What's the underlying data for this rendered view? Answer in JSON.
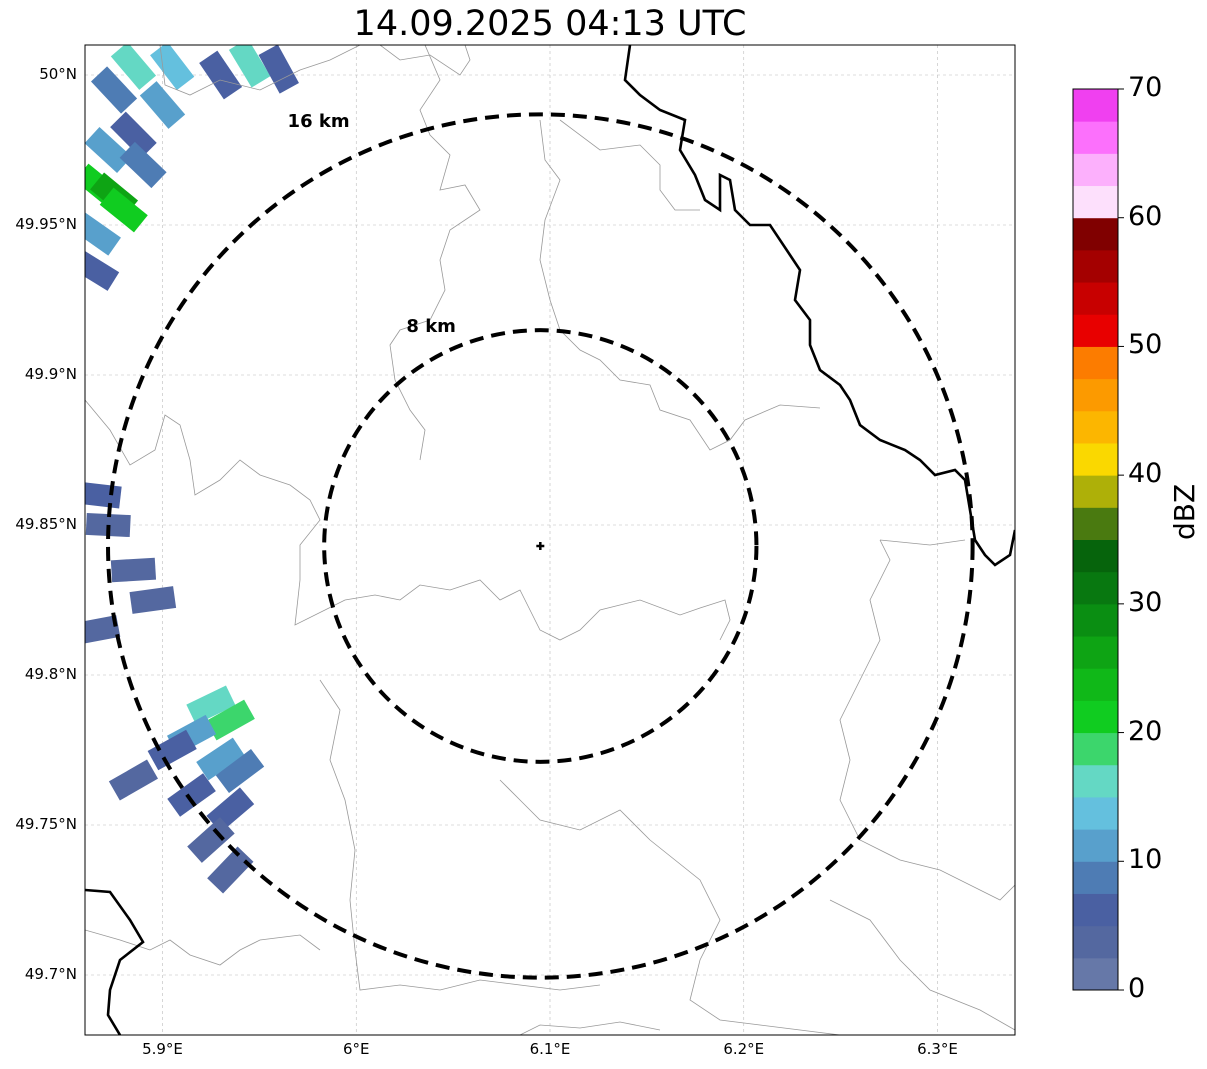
{
  "title": "14.09.2025 04:13 UTC",
  "map": {
    "lat_range": [
      49.68,
      50.01
    ],
    "lon_range": [
      5.86,
      6.34
    ],
    "lat_ticks": [
      {
        "value": 50.0,
        "label": "50°N"
      },
      {
        "value": 49.95,
        "label": "49.95°N"
      },
      {
        "value": 49.9,
        "label": "49.9°N"
      },
      {
        "value": 49.85,
        "label": "49.85°N"
      },
      {
        "value": 49.8,
        "label": "49.8°N"
      },
      {
        "value": 49.75,
        "label": "49.75°N"
      },
      {
        "value": 49.7,
        "label": "49.7°N"
      }
    ],
    "lon_ticks": [
      {
        "value": 5.9,
        "label": "5.9°E"
      },
      {
        "value": 6.0,
        "label": "6°E"
      },
      {
        "value": 6.1,
        "label": "6.1°E"
      },
      {
        "value": 6.2,
        "label": "6.2°E"
      },
      {
        "value": 6.3,
        "label": "6.3°E"
      }
    ],
    "grid": true,
    "radar_site": {
      "lat": 49.843,
      "lon": 6.095
    },
    "range_rings": [
      {
        "radius_km": 8,
        "label": "8 km"
      },
      {
        "radius_km": 16,
        "label": "16 km"
      }
    ]
  },
  "colorbar": {
    "label": "dBZ",
    "min": 0,
    "max": 70,
    "ticks": [
      "0",
      "10",
      "20",
      "30",
      "40",
      "50",
      "60",
      "70"
    ],
    "colors": [
      "#6678a8",
      "#5468a0",
      "#4a60a2",
      "#4e7cb4",
      "#58a0cc",
      "#64c0de",
      "#64d8c4",
      "#3cd66c",
      "#10cc20",
      "#10b818",
      "#0ea414",
      "#0a8e12",
      "#087810",
      "#06640c",
      "#4a7a10",
      "#aeb008",
      "#fad800",
      "#fcb600",
      "#fc9a00",
      "#fc7c00",
      "#e80000",
      "#c80000",
      "#a40000",
      "#800000",
      "#fde0fc",
      "#fcb0fc",
      "#fc70fc",
      "#f040f0"
    ]
  },
  "echoes": [
    {
      "lat": 50.003,
      "lon": 5.885,
      "dbz": 16
    },
    {
      "lat": 50.003,
      "lon": 5.905,
      "dbz": 14
    },
    {
      "lat": 50.0,
      "lon": 5.93,
      "dbz": 5
    },
    {
      "lat": 50.004,
      "lon": 5.945,
      "dbz": 16
    },
    {
      "lat": 50.002,
      "lon": 5.96,
      "dbz": 6
    },
    {
      "lat": 49.995,
      "lon": 5.875,
      "dbz": 8
    },
    {
      "lat": 49.99,
      "lon": 5.9,
      "dbz": 12
    },
    {
      "lat": 49.98,
      "lon": 5.885,
      "dbz": 6
    },
    {
      "lat": 49.975,
      "lon": 5.872,
      "dbz": 12
    },
    {
      "lat": 49.97,
      "lon": 5.89,
      "dbz": 8
    },
    {
      "lat": 49.963,
      "lon": 5.867,
      "dbz": 22
    },
    {
      "lat": 49.96,
      "lon": 5.875,
      "dbz": 26
    },
    {
      "lat": 49.955,
      "lon": 5.88,
      "dbz": 20
    },
    {
      "lat": 49.947,
      "lon": 5.866,
      "dbz": 12
    },
    {
      "lat": 49.935,
      "lon": 5.865,
      "dbz": 5
    },
    {
      "lat": 49.86,
      "lon": 5.867,
      "dbz": 5
    },
    {
      "lat": 49.85,
      "lon": 5.872,
      "dbz": 4
    },
    {
      "lat": 49.835,
      "lon": 5.885,
      "dbz": 4
    },
    {
      "lat": 49.825,
      "lon": 5.895,
      "dbz": 3
    },
    {
      "lat": 49.815,
      "lon": 5.866,
      "dbz": 4
    },
    {
      "lat": 49.79,
      "lon": 5.925,
      "dbz": 16
    },
    {
      "lat": 49.785,
      "lon": 5.935,
      "dbz": 18
    },
    {
      "lat": 49.78,
      "lon": 5.915,
      "dbz": 10
    },
    {
      "lat": 49.775,
      "lon": 5.905,
      "dbz": 6
    },
    {
      "lat": 49.772,
      "lon": 5.93,
      "dbz": 12
    },
    {
      "lat": 49.768,
      "lon": 5.94,
      "dbz": 8
    },
    {
      "lat": 49.765,
      "lon": 5.885,
      "dbz": 3
    },
    {
      "lat": 49.76,
      "lon": 5.915,
      "dbz": 5
    },
    {
      "lat": 49.755,
      "lon": 5.935,
      "dbz": 6
    },
    {
      "lat": 49.745,
      "lon": 5.925,
      "dbz": 4
    },
    {
      "lat": 49.735,
      "lon": 5.935,
      "dbz": 3
    }
  ]
}
